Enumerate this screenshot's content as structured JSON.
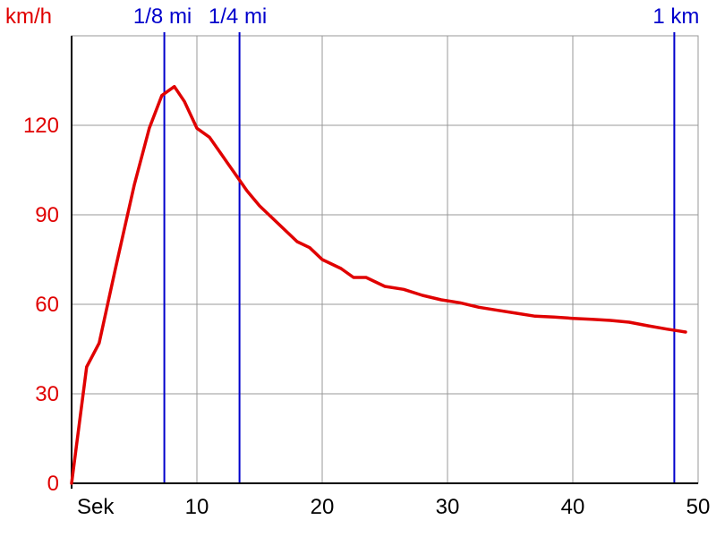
{
  "chart_data": {
    "type": "line",
    "title": "",
    "xlabel": "Sek",
    "ylabel": "km/h",
    "xlim": [
      0,
      50
    ],
    "ylim": [
      0,
      150
    ],
    "x_ticks": [
      10,
      20,
      30,
      40,
      50
    ],
    "y_ticks": [
      0,
      30,
      60,
      90,
      120
    ],
    "grid": true,
    "series": [
      {
        "color": "#e00000",
        "x": [
          0,
          1.2,
          2.2,
          3.5,
          5.0,
          6.2,
          7.2,
          8.2,
          9.0,
          10.0,
          11.0,
          12.0,
          13.0,
          14.0,
          15.0,
          16.5,
          18.0,
          19.0,
          20.0,
          21.5,
          22.5,
          23.5,
          25.0,
          26.5,
          28.0,
          29.5,
          31.0,
          32.5,
          34.0,
          35.5,
          37.0,
          38.5,
          40.0,
          41.5,
          43.0,
          44.5,
          46.0,
          47.5,
          49.0
        ],
        "y": [
          0,
          39,
          47,
          72,
          100,
          119,
          130,
          133,
          128,
          119,
          116,
          110,
          104,
          98,
          93,
          87,
          81,
          79,
          75,
          72,
          69,
          69,
          66,
          65,
          63,
          61.5,
          60.5,
          59,
          58,
          57,
          56,
          55.7,
          55.3,
          55,
          54.6,
          54,
          52.8,
          51.7,
          50.7
        ]
      }
    ],
    "markers": [
      {
        "label": "1/8 mi",
        "x": 7.4,
        "color": "#0000cc"
      },
      {
        "label": "1/4 mi",
        "x": 13.4,
        "color": "#0000cc"
      },
      {
        "label": "1 km",
        "x": 48.1,
        "color": "#0000cc"
      }
    ]
  }
}
